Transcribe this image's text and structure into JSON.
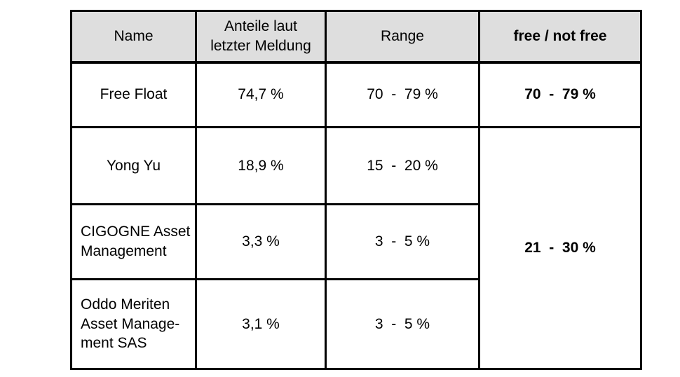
{
  "table": {
    "headers": [
      {
        "label": "Name"
      },
      {
        "label": "Anteile laut\nletzter Meldung"
      },
      {
        "label": "Range"
      },
      {
        "label": "free / not free"
      }
    ],
    "rows": [
      {
        "name": "Free Float",
        "share": "74,7 %",
        "range": "70  -  79 %"
      },
      {
        "name": "Yong Yu",
        "share": "18,9 %",
        "range": "15  -  20 %"
      },
      {
        "name": "CIGOGNE Asset\nManagement",
        "share": "3,3 %",
        "range": "3  -  5 %"
      },
      {
        "name": "Oddo Meriten\nAsset Manage-\nment SAS",
        "share": "3,1 %",
        "range": "3  -  5 %"
      }
    ],
    "free_not_free": {
      "free_float": "70  -  79 %",
      "not_free_merged": "21  -  30 %"
    }
  },
  "colors": {
    "header_bg": "#dedede",
    "border": "#000000",
    "text": "#000000"
  }
}
